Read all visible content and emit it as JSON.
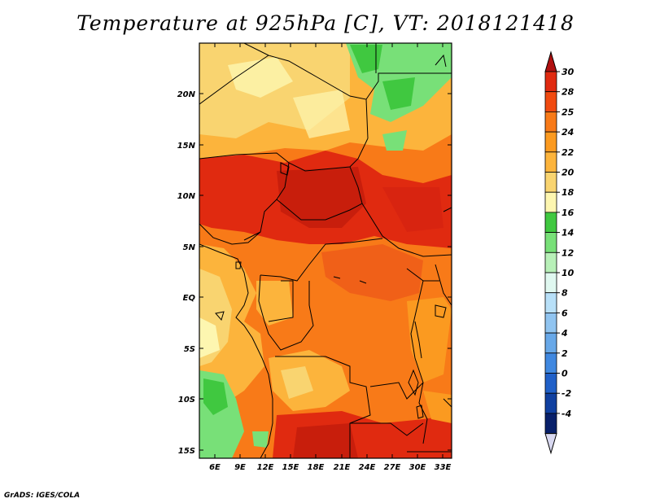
{
  "title": "Temperature at 925hPa [C], VT: 2018121418",
  "credit": "GrADS: IGES/COLA",
  "map": {
    "lat_ticks": [
      "20N",
      "15N",
      "10N",
      "5N",
      "EQ",
      "5S",
      "10S",
      "15S"
    ],
    "lon_ticks": [
      "6E",
      "9E",
      "12E",
      "15E",
      "18E",
      "21E",
      "24E",
      "27E",
      "30E",
      "33E"
    ]
  },
  "colorbar": {
    "labels": [
      "30",
      "28",
      "25",
      "24",
      "22",
      "20",
      "18",
      "16",
      "14",
      "12",
      "10",
      "8",
      "6",
      "4",
      "2",
      "0",
      "-2",
      "-4"
    ],
    "colors": [
      "#e02a10",
      "#f04a10",
      "#f87a18",
      "#fb9a20",
      "#fcb43c",
      "#f9d470",
      "#fdf6b0",
      "#40c840",
      "#78e078",
      "#b8f0b8",
      "#e0f8f0",
      "#b8e0f8",
      "#90c4f0",
      "#68a8e8",
      "#4088e0",
      "#2060c8",
      "#1040a0",
      "#08206a"
    ],
    "top_arrow_color": "#b01010",
    "bottom_arrow_color": "#d8d8f0"
  },
  "chart_data": {
    "type": "heatmap",
    "title": "Temperature at 925hPa [C], VT: 2018121418",
    "variable": "Temperature at 925hPa",
    "units": "C",
    "valid_time": "2018121418",
    "lon_range": [
      4,
      34
    ],
    "lat_range": [
      -16,
      25
    ],
    "color_levels": [
      -4,
      -2,
      0,
      2,
      4,
      6,
      8,
      10,
      12,
      14,
      16,
      18,
      20,
      22,
      24,
      25,
      28,
      30
    ]
  }
}
